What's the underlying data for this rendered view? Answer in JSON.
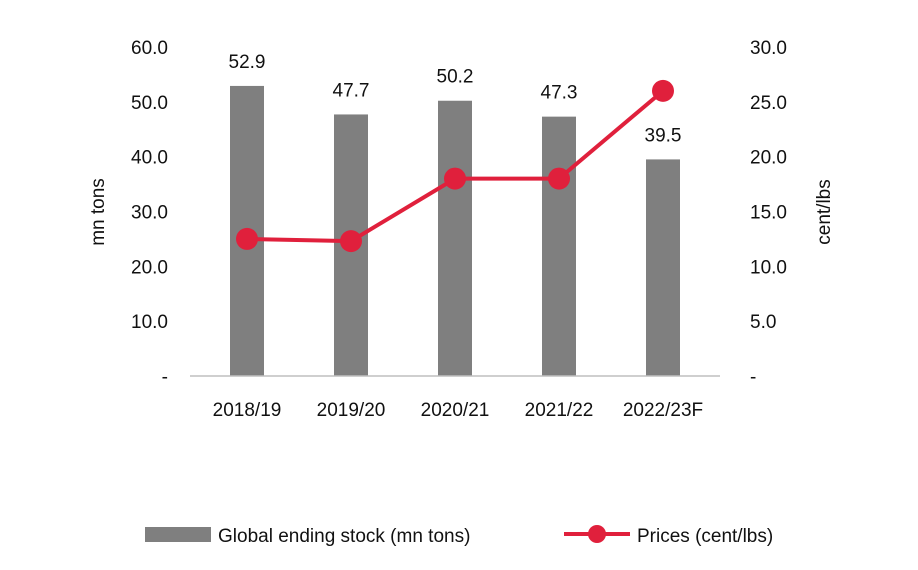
{
  "chart_data": {
    "type": "bar",
    "categories": [
      "2018/19",
      "2019/20",
      "2020/21",
      "2021/22",
      "2022/23F"
    ],
    "series": [
      {
        "name": "Global ending stock (mn tons)",
        "type": "bar",
        "axis": "left",
        "values": [
          52.9,
          47.7,
          50.2,
          47.3,
          39.5
        ],
        "labels": [
          "52.9",
          "47.7",
          "50.2",
          "47.3",
          "39.5"
        ],
        "color": "#7f7f7f"
      },
      {
        "name": "Prices (cent/lbs)",
        "type": "line",
        "axis": "right",
        "values": [
          12.5,
          12.3,
          18.0,
          18.0,
          26.0
        ],
        "color": "#e0203c"
      }
    ],
    "ylabel_left": "mn tons",
    "ylabel_right": "cent/lbs",
    "ylim_left": [
      0,
      60
    ],
    "ylim_right": [
      0,
      30
    ],
    "yticks_left": [
      "-",
      "10.0",
      "20.0",
      "30.0",
      "40.0",
      "50.0",
      "60.0"
    ],
    "yticks_right": [
      "-",
      "5.0",
      "10.0",
      "15.0",
      "20.0",
      "25.0",
      "30.0"
    ],
    "grid": false,
    "legend_position": "bottom"
  }
}
